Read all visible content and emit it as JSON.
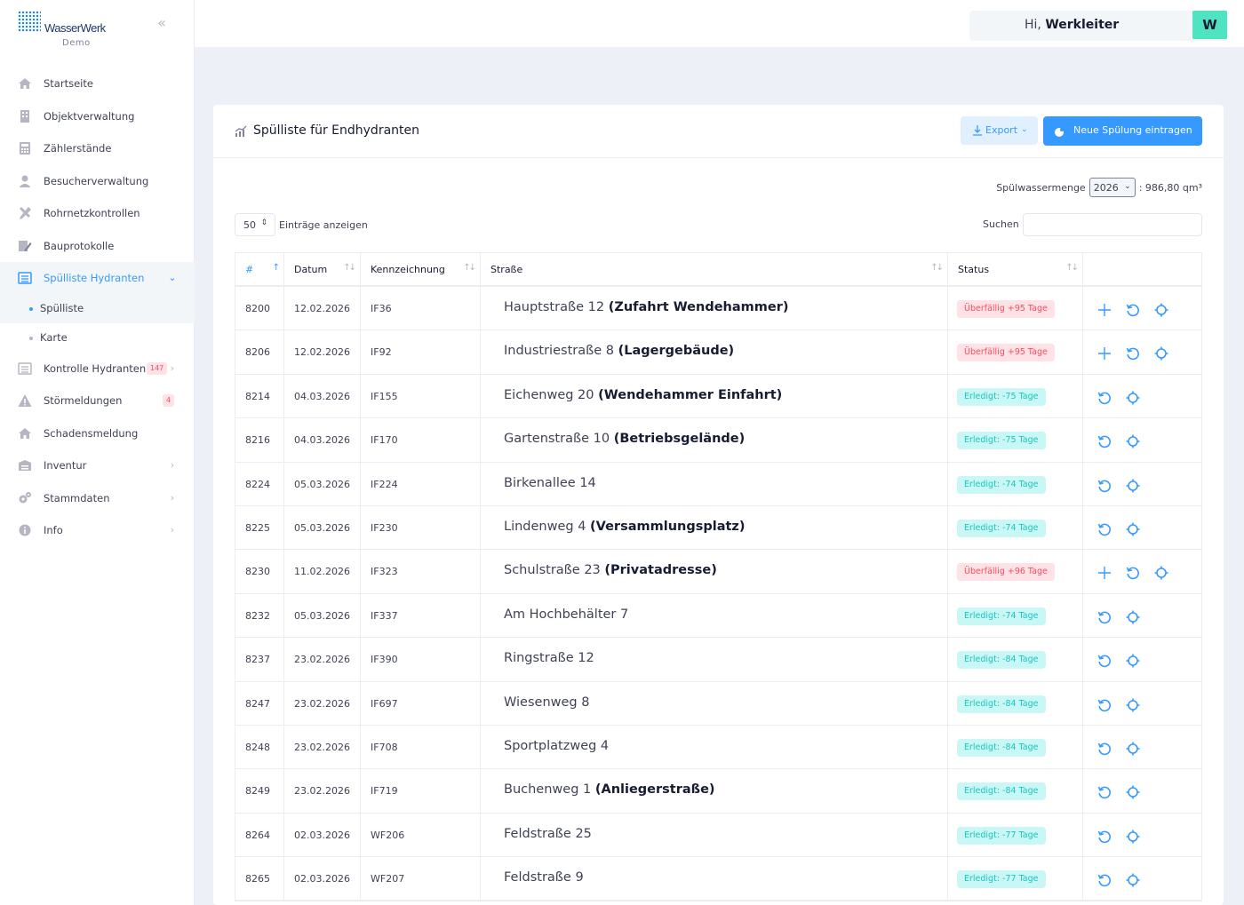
{
  "brand": {
    "logo_text": "WasserWerk",
    "logo_subtitle": "Demo"
  },
  "header": {
    "greeting": "Hi,",
    "user": "Werkleiter",
    "avatar_initial": "W"
  },
  "sidebar": {
    "items": [
      {
        "label": "Startseite"
      },
      {
        "label": "Objektverwaltung"
      },
      {
        "label": "Zählerstände"
      },
      {
        "label": "Besucherverwaltung"
      },
      {
        "label": "Rohrnetzkontrollen"
      },
      {
        "label": "Bauprotokolle"
      },
      {
        "label": "Spülliste Hydranten"
      },
      {
        "label": "Kontrolle Hydranten",
        "badge": "147"
      },
      {
        "label": "Störmeldungen",
        "badge": "4"
      },
      {
        "label": "Schadensmeldung"
      },
      {
        "label": "Inventur"
      },
      {
        "label": "Stammdaten"
      },
      {
        "label": "Info"
      }
    ],
    "subitems": [
      {
        "label": "Spülliste"
      },
      {
        "label": "Karte"
      }
    ]
  },
  "card": {
    "title": "Spülliste für Endhydranten",
    "export_label": "Export",
    "new_label": "Neue Spülung eintragen",
    "spuel_label": "Spülwassermenge",
    "spuel_year": "2026",
    "spuel_value": ": 986,80 qm³",
    "length_value": "50",
    "length_label": "Einträge anzeigen",
    "search_label": "Suchen",
    "search_value": ""
  },
  "table": {
    "columns": [
      "#",
      "Datum",
      "Kennzeichnung",
      "Straße",
      "Status"
    ],
    "rows": [
      {
        "id": "8200",
        "date": "12.02.2026",
        "code": "IF36",
        "street": "Hauptstraße 12",
        "note": "(Zufahrt Wendehammer)",
        "status": "Überfällig +95 Tage",
        "overdue": true
      },
      {
        "id": "8206",
        "date": "12.02.2026",
        "code": "IF92",
        "street": "Industriestraße 8",
        "note": "(Lagergebäude)",
        "status": "Überfällig +95 Tage",
        "overdue": true
      },
      {
        "id": "8214",
        "date": "04.03.2026",
        "code": "IF155",
        "street": "Eichenweg 20",
        "note": "(Wendehammer Einfahrt)",
        "status": "Erledigt: -75 Tage",
        "overdue": false
      },
      {
        "id": "8216",
        "date": "04.03.2026",
        "code": "IF170",
        "street": "Gartenstraße 10",
        "note": "(Betriebsgelände)",
        "status": "Erledigt: -75 Tage",
        "overdue": false
      },
      {
        "id": "8224",
        "date": "05.03.2026",
        "code": "IF224",
        "street": "Birkenallee 14",
        "note": "",
        "status": "Erledigt: -74 Tage",
        "overdue": false
      },
      {
        "id": "8225",
        "date": "05.03.2026",
        "code": "IF230",
        "street": "Lindenweg 4",
        "note": "(Versammlungsplatz)",
        "status": "Erledigt: -74 Tage",
        "overdue": false
      },
      {
        "id": "8230",
        "date": "11.02.2026",
        "code": "IF323",
        "street": "Schulstraße 23",
        "note": "(Privatadresse)",
        "status": "Überfällig +96 Tage",
        "overdue": true
      },
      {
        "id": "8232",
        "date": "05.03.2026",
        "code": "IF337",
        "street": "Am Hochbehälter 7",
        "note": "",
        "status": "Erledigt: -74 Tage",
        "overdue": false
      },
      {
        "id": "8237",
        "date": "23.02.2026",
        "code": "IF390",
        "street": "Ringstraße 12",
        "note": "",
        "status": "Erledigt: -84 Tage",
        "overdue": false
      },
      {
        "id": "8247",
        "date": "23.02.2026",
        "code": "IF697",
        "street": "Wiesenweg 8",
        "note": "",
        "status": "Erledigt: -84 Tage",
        "overdue": false
      },
      {
        "id": "8248",
        "date": "23.02.2026",
        "code": "IF708",
        "street": "Sportplatzweg 4",
        "note": "",
        "status": "Erledigt: -84 Tage",
        "overdue": false
      },
      {
        "id": "8249",
        "date": "23.02.2026",
        "code": "IF719",
        "street": "Buchenweg 1",
        "note": "(Anliegerstraße)",
        "status": "Erledigt: -84 Tage",
        "overdue": false
      },
      {
        "id": "8264",
        "date": "02.03.2026",
        "code": "WF206",
        "street": "Feldstraße 25",
        "note": "",
        "status": "Erledigt: -77 Tage",
        "overdue": false
      },
      {
        "id": "8265",
        "date": "02.03.2026",
        "code": "WF207",
        "street": "Feldstraße 9",
        "note": "",
        "status": "Erledigt: -77 Tage",
        "overdue": false
      }
    ]
  },
  "colors": {
    "accent": "#3699ff",
    "overdue_bg": "#ffe2e5",
    "overdue_fg": "#f64e60",
    "done_bg": "#c9f7f5",
    "done_fg": "#1bc5bd",
    "avatar": "#50e3c2"
  },
  "icons": {
    "add": "plus-icon",
    "history": "history-icon",
    "locate": "target-icon"
  }
}
